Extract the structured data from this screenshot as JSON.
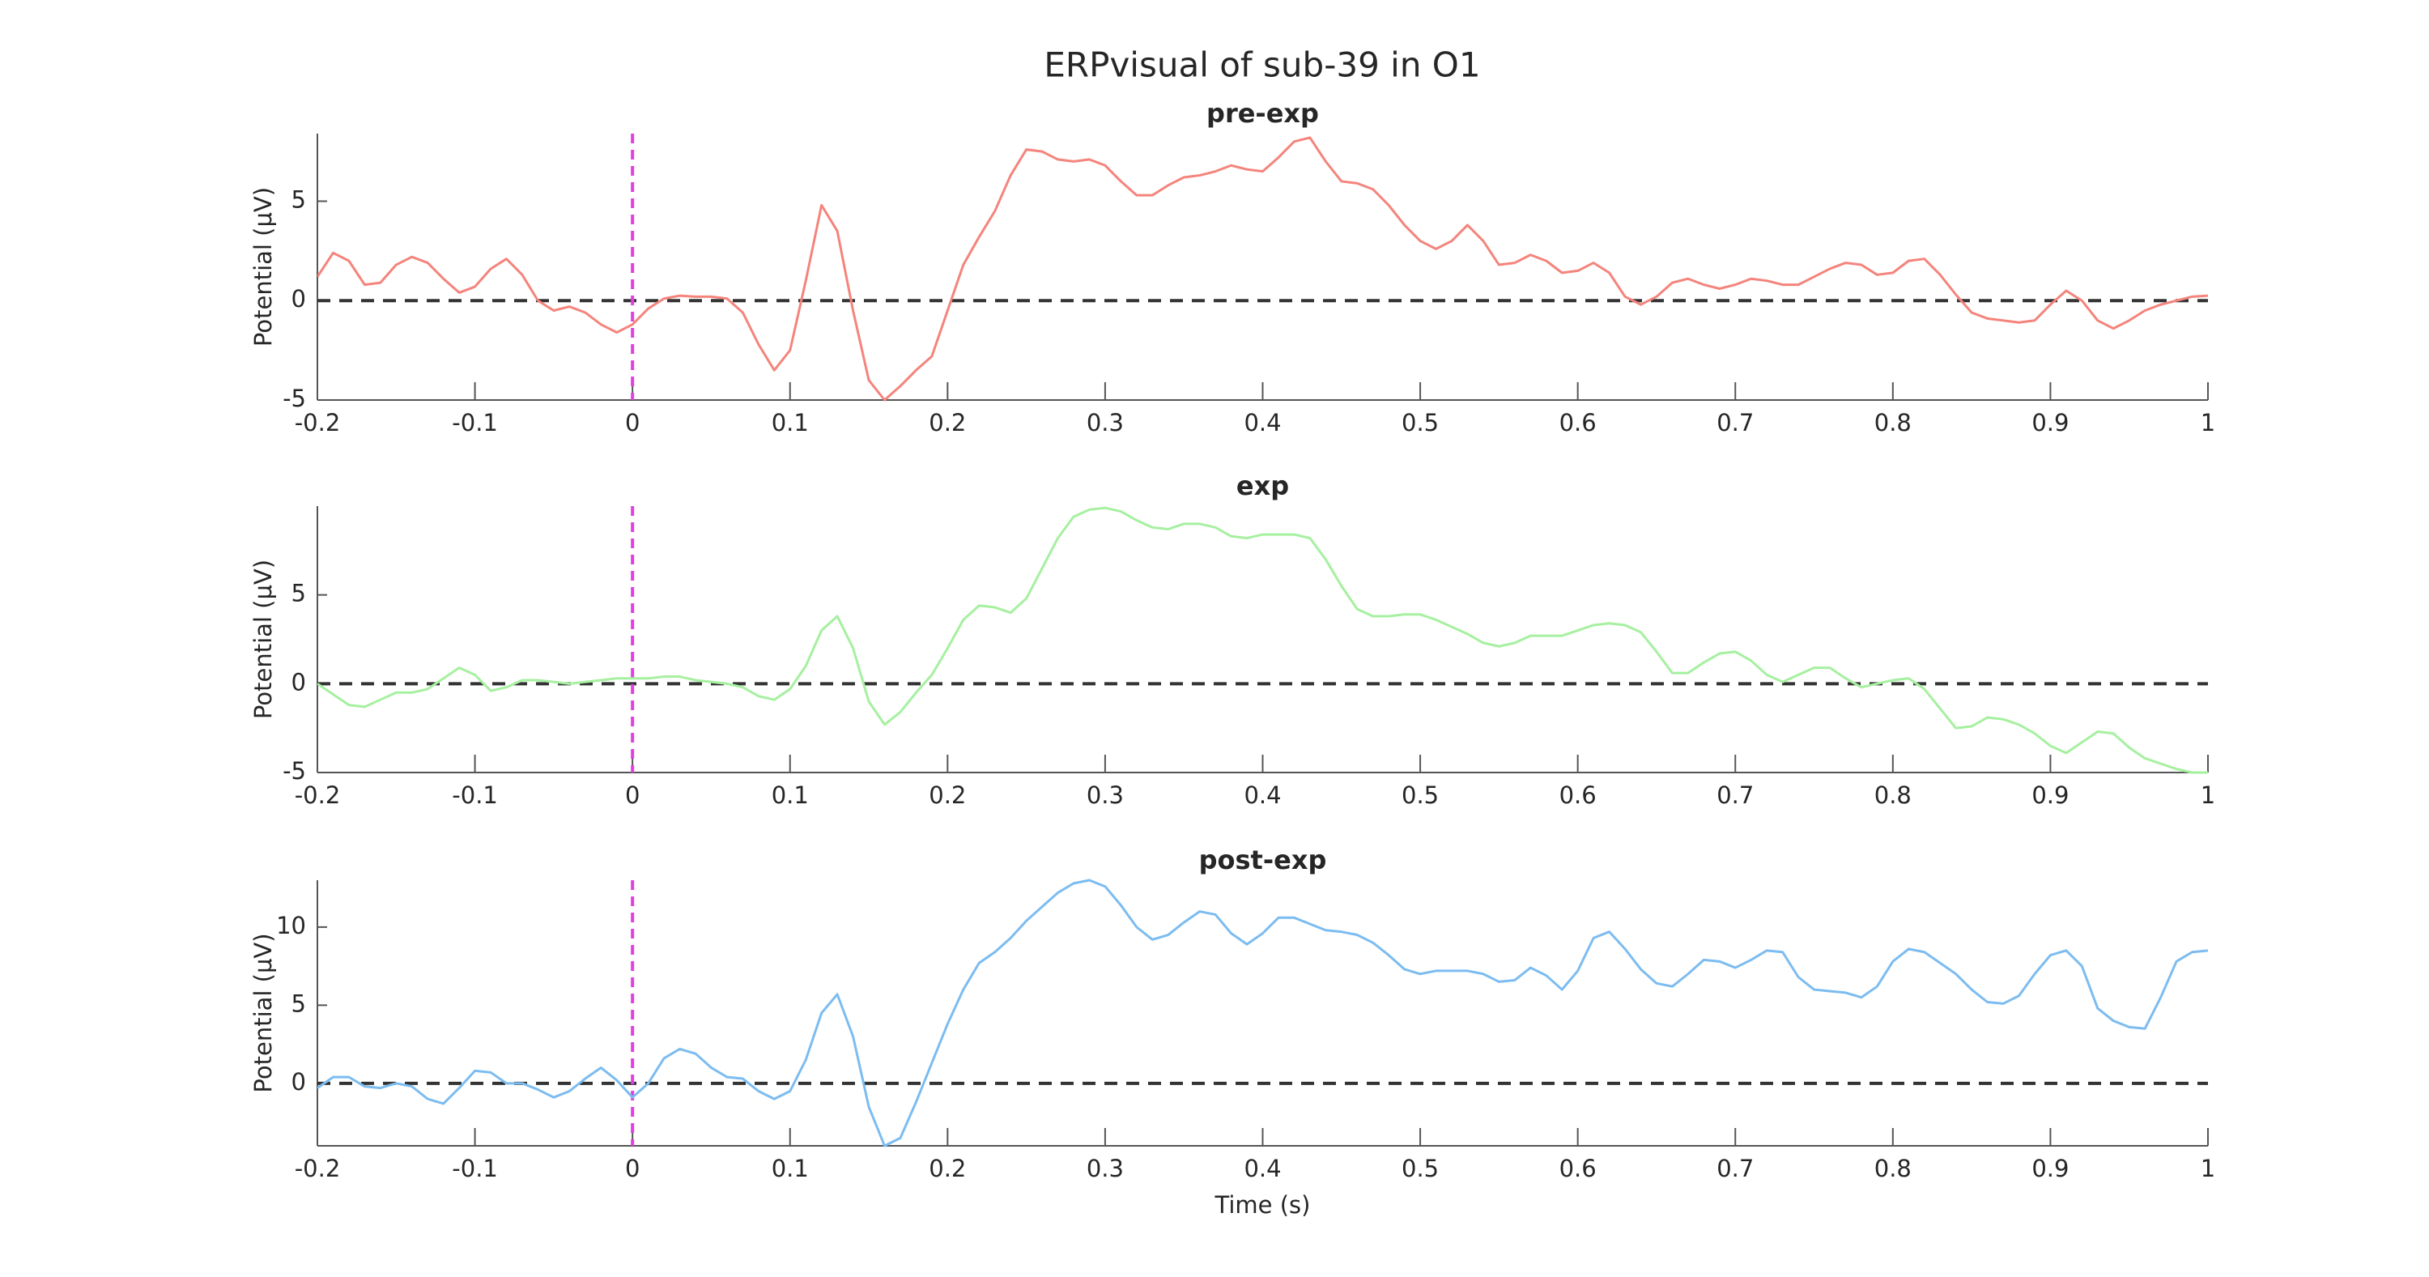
{
  "title": "ERPvisual of sub-39 in O1",
  "chart_data": [
    {
      "type": "line",
      "title": "pre-exp",
      "ylabel": "Potential (μV)",
      "color": "#f4847c",
      "xlim": [
        -0.2,
        1
      ],
      "xticks": [
        -0.2,
        -0.1,
        0,
        0.1,
        0.2,
        0.3,
        0.4,
        0.5,
        0.6,
        0.7,
        0.8,
        0.9,
        1
      ],
      "ylim": [
        -5,
        8.4
      ],
      "yticks": [
        -5,
        0,
        5
      ],
      "hline": 0,
      "hline_color": "#333333",
      "vline": 0,
      "vline_color": "#e040e0",
      "x": [
        -0.2,
        -0.19,
        -0.18,
        -0.17,
        -0.16,
        -0.15,
        -0.14,
        -0.13,
        -0.12,
        -0.11,
        -0.1,
        -0.09,
        -0.08,
        -0.07,
        -0.06,
        -0.05,
        -0.04,
        -0.03,
        -0.02,
        -0.01,
        0,
        0.01,
        0.02,
        0.03,
        0.04,
        0.05,
        0.06,
        0.07,
        0.08,
        0.09,
        0.1,
        0.11,
        0.12,
        0.13,
        0.14,
        0.15,
        0.16,
        0.17,
        0.18,
        0.19,
        0.2,
        0.21,
        0.22,
        0.23,
        0.24,
        0.25,
        0.26,
        0.27,
        0.28,
        0.29,
        0.3,
        0.31,
        0.32,
        0.33,
        0.34,
        0.35,
        0.36,
        0.37,
        0.38,
        0.39,
        0.4,
        0.41,
        0.42,
        0.43,
        0.44,
        0.45,
        0.46,
        0.47,
        0.48,
        0.49,
        0.5,
        0.51,
        0.52,
        0.53,
        0.54,
        0.55,
        0.56,
        0.57,
        0.58,
        0.59,
        0.6,
        0.61,
        0.62,
        0.63,
        0.64,
        0.65,
        0.66,
        0.67,
        0.68,
        0.69,
        0.7,
        0.71,
        0.72,
        0.73,
        0.74,
        0.75,
        0.76,
        0.77,
        0.78,
        0.79,
        0.8,
        0.81,
        0.82,
        0.83,
        0.84,
        0.85,
        0.86,
        0.87,
        0.88,
        0.89,
        0.9,
        0.91,
        0.92,
        0.93,
        0.94,
        0.95,
        0.96,
        0.97,
        0.98,
        0.99,
        1
      ],
      "values": [
        1.2,
        2.4,
        2.0,
        0.8,
        0.9,
        1.8,
        2.2,
        1.9,
        1.1,
        0.4,
        0.7,
        1.6,
        2.1,
        1.3,
        0.0,
        -0.5,
        -0.3,
        -0.6,
        -1.2,
        -1.6,
        -1.2,
        -0.4,
        0.1,
        0.25,
        0.2,
        0.2,
        0.1,
        -0.6,
        -2.2,
        -3.5,
        -2.5,
        1.0,
        4.8,
        3.5,
        -0.5,
        -4.0,
        -5.0,
        -4.3,
        -3.5,
        -2.8,
        -0.5,
        1.8,
        3.2,
        4.5,
        6.3,
        7.6,
        7.5,
        7.1,
        7.0,
        7.1,
        6.8,
        6.0,
        5.3,
        5.3,
        5.8,
        6.2,
        6.3,
        6.5,
        6.8,
        6.6,
        6.5,
        7.2,
        8.0,
        8.2,
        7.0,
        6.0,
        5.9,
        5.6,
        4.8,
        3.8,
        3.0,
        2.6,
        3.0,
        3.8,
        3.0,
        1.8,
        1.9,
        2.3,
        2.0,
        1.4,
        1.5,
        1.9,
        1.4,
        0.2,
        -0.2,
        0.2,
        0.9,
        1.1,
        0.8,
        0.6,
        0.8,
        1.1,
        1.0,
        0.8,
        0.8,
        1.2,
        1.6,
        1.9,
        1.8,
        1.3,
        1.4,
        2.0,
        2.1,
        1.3,
        0.3,
        -0.6,
        -0.9,
        -1.0,
        -1.1,
        -1.0,
        -0.2,
        0.5,
        0.0,
        -1.0,
        -1.4,
        -1.0,
        -0.5,
        -0.2,
        0.0,
        0.2,
        0.25
      ]
    },
    {
      "type": "line",
      "title": "exp",
      "ylabel": "Potential (μV)",
      "color": "#a6f0a0",
      "xlim": [
        -0.2,
        1
      ],
      "xticks": [
        -0.2,
        -0.1,
        0,
        0.1,
        0.2,
        0.3,
        0.4,
        0.5,
        0.6,
        0.7,
        0.8,
        0.9,
        1
      ],
      "ylim": [
        -5,
        10
      ],
      "yticks": [
        -5,
        0,
        5
      ],
      "hline": 0,
      "hline_color": "#333333",
      "vline": 0,
      "vline_color": "#e040e0",
      "x": [
        -0.2,
        -0.19,
        -0.18,
        -0.17,
        -0.16,
        -0.15,
        -0.14,
        -0.13,
        -0.12,
        -0.11,
        -0.1,
        -0.09,
        -0.08,
        -0.07,
        -0.06,
        -0.05,
        -0.04,
        -0.03,
        -0.02,
        -0.01,
        0,
        0.01,
        0.02,
        0.03,
        0.04,
        0.05,
        0.06,
        0.07,
        0.08,
        0.09,
        0.1,
        0.11,
        0.12,
        0.13,
        0.14,
        0.15,
        0.16,
        0.17,
        0.18,
        0.19,
        0.2,
        0.21,
        0.22,
        0.23,
        0.24,
        0.25,
        0.26,
        0.27,
        0.28,
        0.29,
        0.3,
        0.31,
        0.32,
        0.33,
        0.34,
        0.35,
        0.36,
        0.37,
        0.38,
        0.39,
        0.4,
        0.41,
        0.42,
        0.43,
        0.44,
        0.45,
        0.46,
        0.47,
        0.48,
        0.49,
        0.5,
        0.51,
        0.52,
        0.53,
        0.54,
        0.55,
        0.56,
        0.57,
        0.58,
        0.59,
        0.6,
        0.61,
        0.62,
        0.63,
        0.64,
        0.65,
        0.66,
        0.67,
        0.68,
        0.69,
        0.7,
        0.71,
        0.72,
        0.73,
        0.74,
        0.75,
        0.76,
        0.77,
        0.78,
        0.79,
        0.8,
        0.81,
        0.82,
        0.83,
        0.84,
        0.85,
        0.86,
        0.87,
        0.88,
        0.89,
        0.9,
        0.91,
        0.92,
        0.93,
        0.94,
        0.95,
        0.96,
        0.97,
        0.98,
        0.99,
        1
      ],
      "values": [
        0.0,
        -0.6,
        -1.2,
        -1.3,
        -0.9,
        -0.5,
        -0.5,
        -0.3,
        0.3,
        0.9,
        0.5,
        -0.4,
        -0.2,
        0.2,
        0.2,
        0.1,
        0.0,
        0.1,
        0.2,
        0.3,
        0.3,
        0.3,
        0.4,
        0.4,
        0.2,
        0.1,
        0.0,
        -0.2,
        -0.7,
        -0.9,
        -0.3,
        1.0,
        3.0,
        3.8,
        2.0,
        -1.0,
        -2.3,
        -1.6,
        -0.5,
        0.5,
        2.0,
        3.6,
        4.4,
        4.3,
        4.0,
        4.8,
        6.5,
        8.2,
        9.4,
        9.8,
        9.9,
        9.7,
        9.2,
        8.8,
        8.7,
        9.0,
        9.0,
        8.8,
        8.3,
        8.2,
        8.4,
        8.4,
        8.4,
        8.2,
        7.0,
        5.5,
        4.2,
        3.8,
        3.8,
        3.9,
        3.9,
        3.6,
        3.2,
        2.8,
        2.3,
        2.1,
        2.3,
        2.7,
        2.7,
        2.7,
        3.0,
        3.3,
        3.4,
        3.3,
        2.9,
        1.8,
        0.6,
        0.6,
        1.2,
        1.7,
        1.8,
        1.3,
        0.5,
        0.1,
        0.5,
        0.9,
        0.9,
        0.3,
        -0.2,
        0.0,
        0.2,
        0.3,
        -0.3,
        -1.4,
        -2.5,
        -2.4,
        -1.9,
        -2.0,
        -2.3,
        -2.8,
        -3.5,
        -3.9,
        -3.3,
        -2.7,
        -2.8,
        -3.6,
        -4.2,
        -4.5,
        -4.8,
        -5.0,
        -5.0
      ]
    },
    {
      "type": "line",
      "title": "post-exp",
      "ylabel": "Potential (μV)",
      "xlabel": "Time (s)",
      "color": "#7cbcf0",
      "xlim": [
        -0.2,
        1
      ],
      "xticks": [
        -0.2,
        -0.1,
        0,
        0.1,
        0.2,
        0.3,
        0.4,
        0.5,
        0.6,
        0.7,
        0.8,
        0.9,
        1
      ],
      "ylim": [
        -4,
        13
      ],
      "yticks": [
        0,
        5,
        10
      ],
      "hline": 0,
      "hline_color": "#333333",
      "vline": 0,
      "vline_color": "#e040e0",
      "x": [
        -0.2,
        -0.19,
        -0.18,
        -0.17,
        -0.16,
        -0.15,
        -0.14,
        -0.13,
        -0.12,
        -0.11,
        -0.1,
        -0.09,
        -0.08,
        -0.07,
        -0.06,
        -0.05,
        -0.04,
        -0.03,
        -0.02,
        -0.01,
        0,
        0.01,
        0.02,
        0.03,
        0.04,
        0.05,
        0.06,
        0.07,
        0.08,
        0.09,
        0.1,
        0.11,
        0.12,
        0.13,
        0.14,
        0.15,
        0.16,
        0.17,
        0.18,
        0.19,
        0.2,
        0.21,
        0.22,
        0.23,
        0.24,
        0.25,
        0.26,
        0.27,
        0.28,
        0.29,
        0.3,
        0.31,
        0.32,
        0.33,
        0.34,
        0.35,
        0.36,
        0.37,
        0.38,
        0.39,
        0.4,
        0.41,
        0.42,
        0.43,
        0.44,
        0.45,
        0.46,
        0.47,
        0.48,
        0.49,
        0.5,
        0.51,
        0.52,
        0.53,
        0.54,
        0.55,
        0.56,
        0.57,
        0.58,
        0.59,
        0.6,
        0.61,
        0.62,
        0.63,
        0.64,
        0.65,
        0.66,
        0.67,
        0.68,
        0.69,
        0.7,
        0.71,
        0.72,
        0.73,
        0.74,
        0.75,
        0.76,
        0.77,
        0.78,
        0.79,
        0.8,
        0.81,
        0.82,
        0.83,
        0.84,
        0.85,
        0.86,
        0.87,
        0.88,
        0.89,
        0.9,
        0.91,
        0.92,
        0.93,
        0.94,
        0.95,
        0.96,
        0.97,
        0.98,
        0.99,
        1
      ],
      "values": [
        -0.3,
        0.4,
        0.4,
        -0.2,
        -0.3,
        0.0,
        -0.2,
        -1.0,
        -1.3,
        -0.3,
        0.8,
        0.7,
        0.0,
        0.0,
        -0.4,
        -0.9,
        -0.5,
        0.3,
        1.0,
        0.2,
        -0.9,
        0.0,
        1.6,
        2.2,
        1.9,
        1.0,
        0.4,
        0.3,
        -0.5,
        -1.0,
        -0.5,
        1.5,
        4.5,
        5.7,
        3.0,
        -1.5,
        -4.0,
        -3.5,
        -1.2,
        1.3,
        3.8,
        6.0,
        7.7,
        8.4,
        9.3,
        10.4,
        11.3,
        12.2,
        12.8,
        13.0,
        12.6,
        11.4,
        10.0,
        9.2,
        9.5,
        10.3,
        11.0,
        10.8,
        9.6,
        8.9,
        9.6,
        10.6,
        10.6,
        10.2,
        9.8,
        9.7,
        9.5,
        9.0,
        8.2,
        7.3,
        7.0,
        7.2,
        7.2,
        7.2,
        7.0,
        6.5,
        6.6,
        7.4,
        6.9,
        6.0,
        7.2,
        9.3,
        9.7,
        8.6,
        7.3,
        6.4,
        6.2,
        7.0,
        7.9,
        7.8,
        7.4,
        7.9,
        8.5,
        8.4,
        6.8,
        6.0,
        5.9,
        5.8,
        5.5,
        6.2,
        7.8,
        8.6,
        8.4,
        7.7,
        7.0,
        6.0,
        5.2,
        5.1,
        5.6,
        7.0,
        8.2,
        8.5,
        7.5,
        4.8,
        4.0,
        3.6,
        3.5,
        5.5,
        7.8,
        8.4,
        8.5
      ]
    }
  ]
}
